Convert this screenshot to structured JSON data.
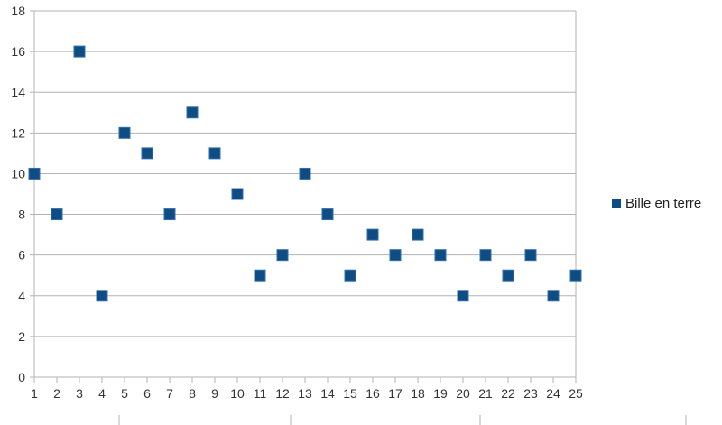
{
  "chart_data": {
    "type": "scatter",
    "title": "",
    "xlabel": "",
    "ylabel": "",
    "x": [
      1,
      2,
      3,
      4,
      5,
      6,
      7,
      8,
      9,
      10,
      11,
      12,
      13,
      14,
      15,
      16,
      17,
      18,
      19,
      20,
      21,
      22,
      23,
      24,
      25
    ],
    "series": [
      {
        "name": "Bille en terre",
        "color": "#0f4c81",
        "values": [
          10,
          8,
          16,
          4,
          12,
          11,
          8,
          13,
          11,
          9,
          5,
          6,
          10,
          8,
          5,
          7,
          6,
          7,
          6,
          4,
          6,
          5,
          6,
          4,
          5
        ]
      }
    ],
    "xlim": [
      1,
      25
    ],
    "ylim": [
      0,
      18
    ],
    "ytick_step": 2,
    "x_ticks": [
      "1",
      "2",
      "3",
      "4",
      "5",
      "6",
      "7",
      "8",
      "9",
      "10",
      "11",
      "12",
      "13",
      "14",
      "15",
      "16",
      "17",
      "18",
      "19",
      "20",
      "21",
      "22",
      "23",
      "24",
      "25"
    ],
    "y_ticks": [
      "0",
      "2",
      "4",
      "6",
      "8",
      "10",
      "12",
      "14",
      "16",
      "18"
    ],
    "grid": "horizontal",
    "legend_position": "right",
    "marker": "square"
  }
}
